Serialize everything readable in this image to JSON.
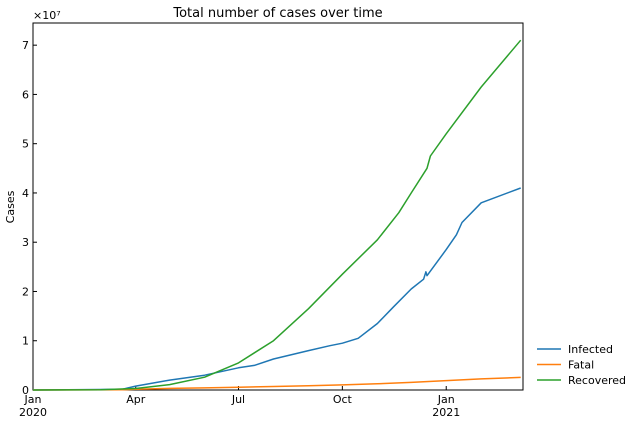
{
  "chart_data": {
    "type": "line",
    "title": "Total number of cases over time",
    "xlabel": "",
    "ylabel": "Cases",
    "y_offset_text": "×10⁷",
    "y_unit": 10000000,
    "ylim": [
      0,
      74500000
    ],
    "xlim": [
      "2020-01-01",
      "2021-03-10"
    ],
    "x_ticks": [
      {
        "date": "2020-01-01",
        "label": "Jan",
        "sublabel": "2020"
      },
      {
        "date": "2020-04-01",
        "label": "Apr",
        "sublabel": ""
      },
      {
        "date": "2020-07-01",
        "label": "Jul",
        "sublabel": ""
      },
      {
        "date": "2020-10-01",
        "label": "Oct",
        "sublabel": ""
      },
      {
        "date": "2021-01-01",
        "label": "Jan",
        "sublabel": "2021"
      }
    ],
    "y_ticks": [
      {
        "value": 0,
        "label": "0"
      },
      {
        "value": 10000000,
        "label": "1"
      },
      {
        "value": 20000000,
        "label": "2"
      },
      {
        "value": 30000000,
        "label": "3"
      },
      {
        "value": 40000000,
        "label": "4"
      },
      {
        "value": 50000000,
        "label": "5"
      },
      {
        "value": 60000000,
        "label": "6"
      },
      {
        "value": 70000000,
        "label": "7"
      }
    ],
    "legend_position": "outside-lower-right",
    "grid": false,
    "series": [
      {
        "name": "Infected",
        "color": "#1f77b4",
        "points": [
          [
            "2020-01-01",
            0
          ],
          [
            "2020-02-01",
            50000
          ],
          [
            "2020-03-01",
            100000
          ],
          [
            "2020-03-20",
            150000
          ],
          [
            "2020-04-01",
            800000
          ],
          [
            "2020-05-01",
            2000000
          ],
          [
            "2020-06-01",
            3000000
          ],
          [
            "2020-07-01",
            4500000
          ],
          [
            "2020-07-15",
            5000000
          ],
          [
            "2020-08-01",
            6300000
          ],
          [
            "2020-09-01",
            8000000
          ],
          [
            "2020-09-20",
            9000000
          ],
          [
            "2020-10-01",
            9500000
          ],
          [
            "2020-10-15",
            10500000
          ],
          [
            "2020-11-01",
            13500000
          ],
          [
            "2020-11-15",
            16800000
          ],
          [
            "2020-12-01",
            20500000
          ],
          [
            "2020-12-12",
            22500000
          ],
          [
            "2020-12-14",
            24000000
          ],
          [
            "2020-12-15",
            23200000
          ],
          [
            "2021-01-01",
            28500000
          ],
          [
            "2021-01-10",
            31500000
          ],
          [
            "2021-01-15",
            34000000
          ],
          [
            "2021-02-01",
            38000000
          ],
          [
            "2021-03-08",
            41000000
          ]
        ]
      },
      {
        "name": "Fatal",
        "color": "#ff7f0e",
        "points": [
          [
            "2020-01-01",
            0
          ],
          [
            "2020-03-20",
            50000
          ],
          [
            "2020-04-01",
            150000
          ],
          [
            "2020-05-01",
            320000
          ],
          [
            "2020-06-01",
            420000
          ],
          [
            "2020-07-01",
            560000
          ],
          [
            "2020-08-01",
            720000
          ],
          [
            "2020-09-01",
            880000
          ],
          [
            "2020-10-01",
            1030000
          ],
          [
            "2020-11-01",
            1250000
          ],
          [
            "2020-12-01",
            1550000
          ],
          [
            "2021-01-01",
            1900000
          ],
          [
            "2021-02-01",
            2250000
          ],
          [
            "2021-03-08",
            2550000
          ]
        ]
      },
      {
        "name": "Recovered",
        "color": "#2ca02c",
        "points": [
          [
            "2020-01-01",
            0
          ],
          [
            "2020-03-01",
            60000
          ],
          [
            "2020-04-01",
            300000
          ],
          [
            "2020-05-01",
            1100000
          ],
          [
            "2020-06-01",
            2600000
          ],
          [
            "2020-07-01",
            5500000
          ],
          [
            "2020-08-01",
            10000000
          ],
          [
            "2020-09-01",
            16500000
          ],
          [
            "2020-10-01",
            23500000
          ],
          [
            "2020-11-01",
            30500000
          ],
          [
            "2020-11-20",
            36000000
          ],
          [
            "2020-12-01",
            40000000
          ],
          [
            "2020-12-15",
            45000000
          ],
          [
            "2020-12-18",
            47500000
          ],
          [
            "2021-01-01",
            52000000
          ],
          [
            "2021-02-01",
            61500000
          ],
          [
            "2021-03-08",
            71000000
          ]
        ]
      }
    ]
  }
}
